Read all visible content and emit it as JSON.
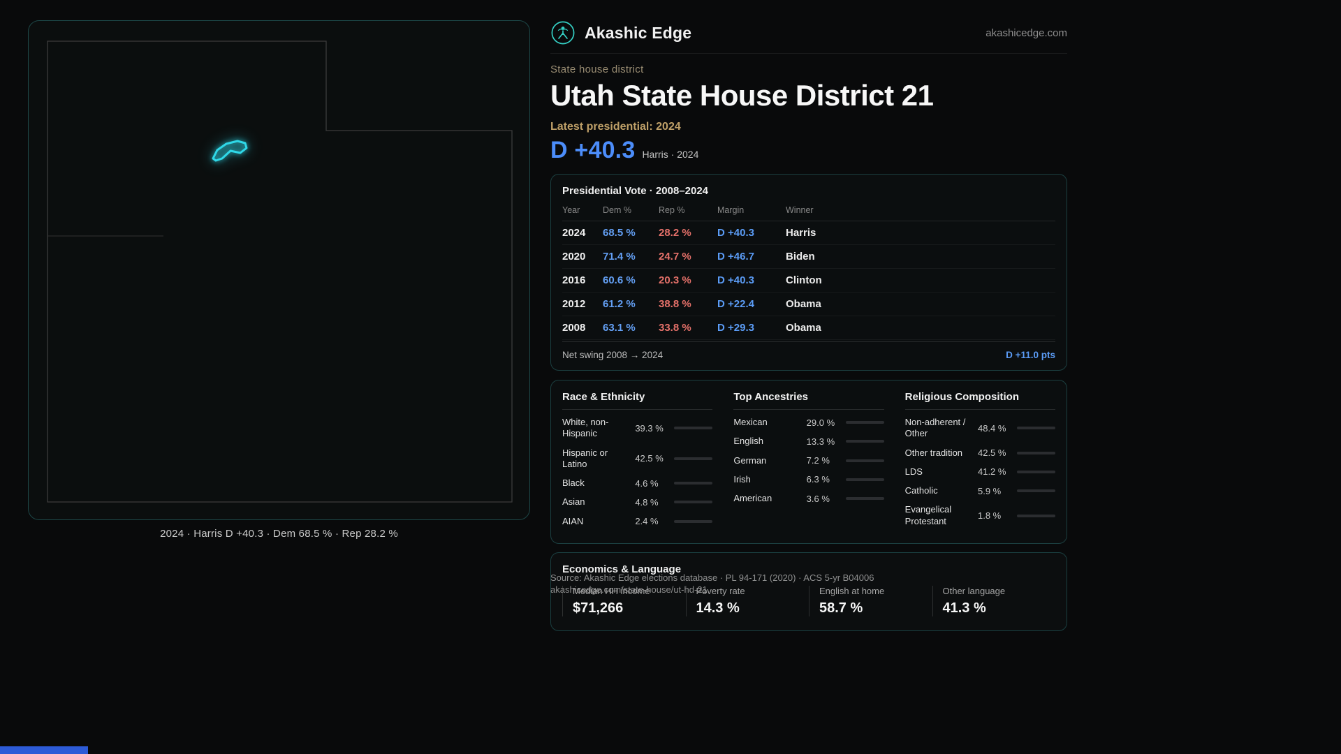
{
  "page": {
    "brand": "Akashic Edge",
    "site": "akashicedge.com",
    "kicker": "State house district",
    "title": "Utah State House District 21",
    "latest_label": "Latest presidential: 2024",
    "margin_value": "D +40.3",
    "margin_context": "Harris · 2024"
  },
  "map": {
    "caption": "2024 · Harris D +40.3 · Dem 68.5 % · Rep 28.2 %",
    "district_color": "#2fd8e8",
    "outline_color": "#3c3c3c"
  },
  "presidential": {
    "title": "Presidential Vote · 2008–2024",
    "columns": [
      "Year",
      "Dem %",
      "Rep %",
      "Margin",
      "Winner"
    ],
    "rows": [
      {
        "year": "2024",
        "dem": "68.5 %",
        "rep": "28.2 %",
        "margin": "D +40.3",
        "winner": "Harris"
      },
      {
        "year": "2020",
        "dem": "71.4 %",
        "rep": "24.7 %",
        "margin": "D +46.7",
        "winner": "Biden"
      },
      {
        "year": "2016",
        "dem": "60.6 %",
        "rep": "20.3 %",
        "margin": "D +40.3",
        "winner": "Clinton"
      },
      {
        "year": "2012",
        "dem": "61.2 %",
        "rep": "38.8 %",
        "margin": "D +22.4",
        "winner": "Obama"
      },
      {
        "year": "2008",
        "dem": "63.1 %",
        "rep": "33.8 %",
        "margin": "D +29.3",
        "winner": "Obama"
      }
    ],
    "net_swing_label": "Net swing 2008 → 2024",
    "net_swing_value": "D +11.0 pts",
    "dem_color": "#64a0f5",
    "rep_color": "#e5716a",
    "margin_color": "#5b9cf6"
  },
  "race": {
    "title": "Race & Ethnicity",
    "rows": [
      {
        "label": "White, non-Hispanic",
        "value": "39.3 %",
        "pct": 39.3,
        "color": "#9aa0a6"
      },
      {
        "label": "Hispanic or Latino",
        "value": "42.5 %",
        "pct": 42.5,
        "color": "#e8a23d"
      },
      {
        "label": "Black",
        "value": "4.6 %",
        "pct": 4.6,
        "color": "#8b7cf6"
      },
      {
        "label": "Asian",
        "value": "4.8 %",
        "pct": 4.8,
        "color": "#2dd4a7"
      },
      {
        "label": "AIAN",
        "value": "2.4 %",
        "pct": 2.4,
        "color": "#e06a52"
      }
    ]
  },
  "ancestries": {
    "title": "Top Ancestries",
    "rows": [
      {
        "label": "Mexican",
        "value": "29.0 %",
        "pct": 29.0,
        "color": "#e8a23d"
      },
      {
        "label": "English",
        "value": "13.3 %",
        "pct": 13.3,
        "color": "#9aa0a6"
      },
      {
        "label": "German",
        "value": "7.2 %",
        "pct": 7.2,
        "color": "#9aa0a6"
      },
      {
        "label": "Irish",
        "value": "6.3 %",
        "pct": 6.3,
        "color": "#9aa0a6"
      },
      {
        "label": "American",
        "value": "3.6 %",
        "pct": 3.6,
        "color": "#9aa0a6"
      }
    ]
  },
  "religion": {
    "title": "Religious Composition",
    "rows": [
      {
        "label": "Non-adherent / Other",
        "value": "48.4 %",
        "pct": 48.4,
        "color": "#9aa0a6"
      },
      {
        "label": "Other tradition",
        "value": "42.5 %",
        "pct": 42.5,
        "color": "#9aa0a6"
      },
      {
        "label": "LDS",
        "value": "41.2 %",
        "pct": 41.2,
        "color": "#2dd4bf"
      },
      {
        "label": "Catholic",
        "value": "5.9 %",
        "pct": 5.9,
        "color": "#e8c53d"
      },
      {
        "label": "Evangelical Protestant",
        "value": "1.8 %",
        "pct": 1.8,
        "color": "#d9534f"
      }
    ]
  },
  "economics": {
    "title": "Economics & Language",
    "stats": [
      {
        "label": "Median HH income",
        "value": "$71,266"
      },
      {
        "label": "Poverty rate",
        "value": "14.3 %"
      },
      {
        "label": "English at home",
        "value": "58.7 %"
      },
      {
        "label": "Other language",
        "value": "41.3 %"
      }
    ]
  },
  "footer": {
    "source": "Source: Akashic Edge elections database · PL 94-171 (2020) · ACS 5-yr B04006",
    "url": "akashicedge.com/state-house/ut-hd-21"
  }
}
